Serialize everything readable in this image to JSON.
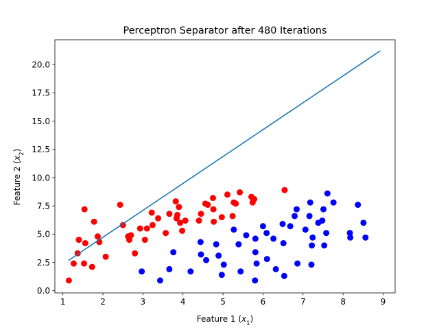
{
  "chart_data": {
    "type": "scatter",
    "title": "Perceptron Separator after 480 Iterations",
    "xlabel": "Feature 1 ($x_1$)",
    "ylabel": "Feature 2 ($x_2$)",
    "xlim": [
      0.8,
      9.3
    ],
    "ylim": [
      -0.2,
      22.2
    ],
    "xticks": [
      1,
      2,
      3,
      4,
      5,
      6,
      7,
      8,
      9
    ],
    "yticks": [
      0.0,
      2.5,
      5.0,
      7.5,
      10.0,
      12.5,
      15.0,
      17.5,
      20.0
    ],
    "ytick_labels": [
      "0.0",
      "2.5",
      "5.0",
      "7.5",
      "10.0",
      "12.5",
      "15.0",
      "17.5",
      "20.0"
    ],
    "grid": false,
    "colors": {
      "red": "#ff0000",
      "blue": "#0000ff",
      "line": "#1f77b4"
    },
    "series": [
      {
        "color": "red",
        "points": [
          [
            1.15,
            0.9
          ],
          [
            1.27,
            2.4
          ],
          [
            1.37,
            3.3
          ],
          [
            1.4,
            4.5
          ],
          [
            1.53,
            2.4
          ],
          [
            1.54,
            7.2
          ],
          [
            1.56,
            4.2
          ],
          [
            1.73,
            2.1
          ],
          [
            1.78,
            6.1
          ],
          [
            1.87,
            4.8
          ],
          [
            1.91,
            4.3
          ],
          [
            2.07,
            3.0
          ],
          [
            2.43,
            7.6
          ],
          [
            2.5,
            5.8
          ],
          [
            2.63,
            4.8
          ],
          [
            2.66,
            4.5
          ],
          [
            2.7,
            4.9
          ],
          [
            2.8,
            3.3
          ],
          [
            2.93,
            5.5
          ],
          [
            3.05,
            4.5
          ],
          [
            3.1,
            5.5
          ],
          [
            3.22,
            6.9
          ],
          [
            3.24,
            5.8
          ],
          [
            3.38,
            6.4
          ],
          [
            3.57,
            5.1
          ],
          [
            3.66,
            6.8
          ],
          [
            3.82,
            7.9
          ],
          [
            3.84,
            6.4
          ],
          [
            3.86,
            6.7
          ],
          [
            3.9,
            7.4
          ],
          [
            3.93,
            6.0
          ],
          [
            3.98,
            5.3
          ],
          [
            4.06,
            6.2
          ],
          [
            4.4,
            6.2
          ],
          [
            4.45,
            6.8
          ],
          [
            4.56,
            7.7
          ],
          [
            4.62,
            7.6
          ],
          [
            4.75,
            8.2
          ],
          [
            4.76,
            7.2
          ],
          [
            4.77,
            6.1
          ],
          [
            4.97,
            6.5
          ],
          [
            5.11,
            8.5
          ],
          [
            5.24,
            6.6
          ],
          [
            5.27,
            7.8
          ],
          [
            5.32,
            7.7
          ],
          [
            5.42,
            8.7
          ],
          [
            5.71,
            8.3
          ],
          [
            5.74,
            7.8
          ],
          [
            5.78,
            8.1
          ],
          [
            6.54,
            8.9
          ]
        ]
      },
      {
        "color": "blue",
        "points": [
          [
            2.97,
            1.7
          ],
          [
            3.43,
            0.9
          ],
          [
            3.66,
            1.9
          ],
          [
            3.76,
            3.4
          ],
          [
            4.19,
            1.7
          ],
          [
            4.44,
            4.3
          ],
          [
            4.45,
            3.2
          ],
          [
            4.58,
            2.7
          ],
          [
            4.83,
            4.1
          ],
          [
            4.89,
            3.1
          ],
          [
            4.97,
            1.4
          ],
          [
            5.02,
            2.3
          ],
          [
            5.27,
            5.4
          ],
          [
            5.39,
            4.1
          ],
          [
            5.44,
            1.7
          ],
          [
            5.58,
            4.9
          ],
          [
            5.8,
            0.9
          ],
          [
            5.81,
            3.4
          ],
          [
            5.81,
            4.6
          ],
          [
            5.84,
            2.4
          ],
          [
            6.0,
            5.7
          ],
          [
            6.09,
            5.1
          ],
          [
            6.1,
            2.8
          ],
          [
            6.26,
            4.6
          ],
          [
            6.32,
            1.9
          ],
          [
            6.49,
            5.9
          ],
          [
            6.51,
            4.2
          ],
          [
            6.53,
            1.3
          ],
          [
            6.68,
            5.7
          ],
          [
            6.79,
            6.6
          ],
          [
            6.84,
            7.2
          ],
          [
            6.86,
            2.4
          ],
          [
            7.06,
            5.4
          ],
          [
            7.16,
            6.6
          ],
          [
            7.18,
            7.8
          ],
          [
            7.21,
            2.3
          ],
          [
            7.22,
            4.0
          ],
          [
            7.24,
            4.7
          ],
          [
            7.38,
            6.0
          ],
          [
            7.48,
            6.2
          ],
          [
            7.51,
            7.2
          ],
          [
            7.53,
            4.0
          ],
          [
            7.58,
            5.1
          ],
          [
            7.61,
            8.6
          ],
          [
            7.76,
            7.8
          ],
          [
            8.17,
            5.1
          ],
          [
            8.18,
            4.7
          ],
          [
            8.37,
            7.6
          ],
          [
            8.51,
            6.0
          ],
          [
            8.56,
            4.7
          ]
        ]
      }
    ],
    "separator": {
      "x": [
        1.15,
        8.92
      ],
      "y": [
        2.7,
        21.2
      ]
    }
  }
}
